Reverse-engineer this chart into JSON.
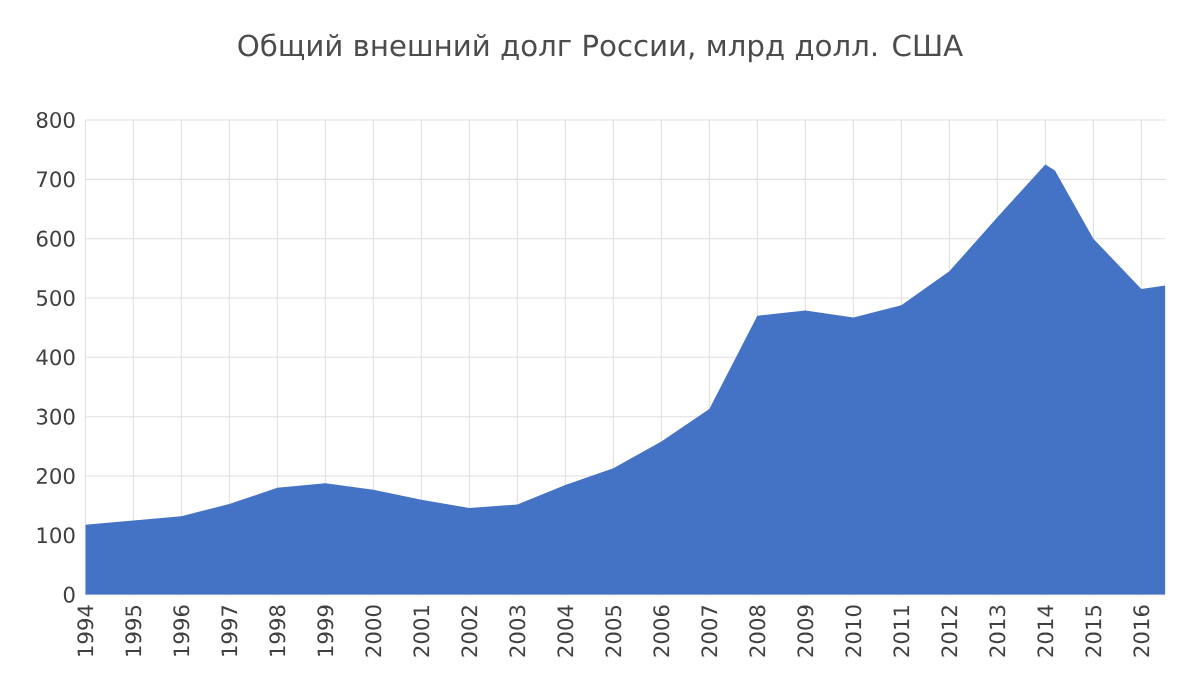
{
  "chart_data": {
    "type": "area",
    "title": "Общий внешний долг России, млрд долл. США",
    "x": [
      1994,
      1995,
      1996,
      1997,
      1998,
      1999,
      2000,
      2001,
      2002,
      2003,
      2004,
      2005,
      2006,
      2007,
      2008,
      2009,
      2010,
      2011,
      2012,
      2013,
      2014,
      2014.2,
      2015,
      2016,
      2016.5
    ],
    "values": [
      118,
      125,
      132,
      153,
      180,
      188,
      177,
      160,
      146,
      152,
      185,
      213,
      258,
      313,
      470,
      479,
      467,
      488,
      545,
      636,
      725,
      715,
      600,
      515,
      521
    ],
    "color": "#4472c4",
    "xlim": [
      1994,
      2016.5
    ],
    "xticks": [
      1994,
      1995,
      1996,
      1997,
      1998,
      1999,
      2000,
      2001,
      2002,
      2003,
      2004,
      2005,
      2006,
      2007,
      2008,
      2009,
      2010,
      2011,
      2012,
      2013,
      2014,
      2015,
      2016
    ],
    "ylim": [
      0,
      800
    ],
    "yticks": [
      0,
      100,
      200,
      300,
      400,
      500,
      600,
      700,
      800
    ],
    "grid": true
  }
}
